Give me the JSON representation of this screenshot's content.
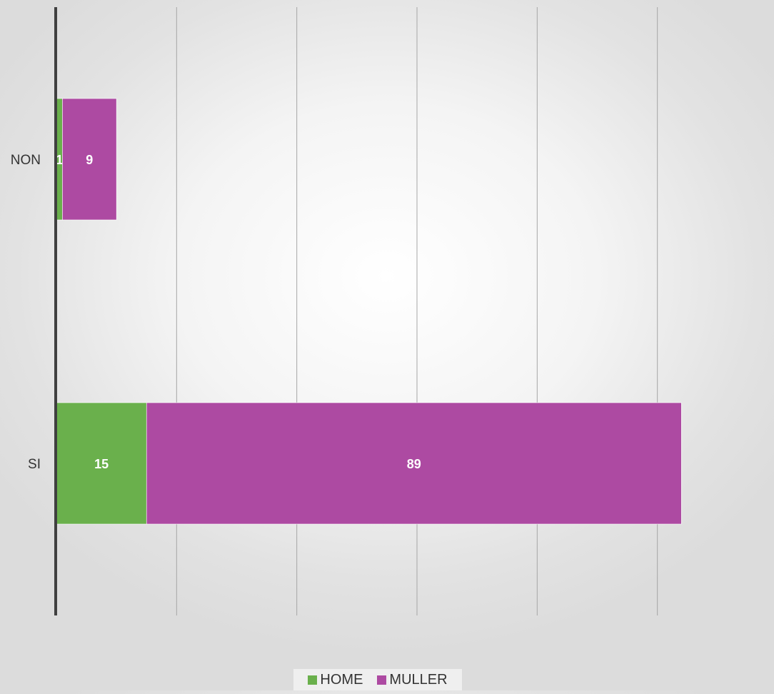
{
  "chart_data": {
    "type": "bar",
    "orientation": "horizontal",
    "stacked": true,
    "categories": [
      "NON",
      "SI"
    ],
    "series": [
      {
        "name": "HOME",
        "values": [
          1,
          15
        ],
        "color": "#6ab04c"
      },
      {
        "name": "MULLER",
        "values": [
          9,
          89
        ],
        "color": "#ad4aa2"
      }
    ],
    "data_labels": true,
    "xlim": [
      0,
      120
    ],
    "x_gridline_step": 20,
    "grid": true,
    "legend_position": "bottom",
    "title": "",
    "xlabel": "",
    "ylabel": ""
  }
}
